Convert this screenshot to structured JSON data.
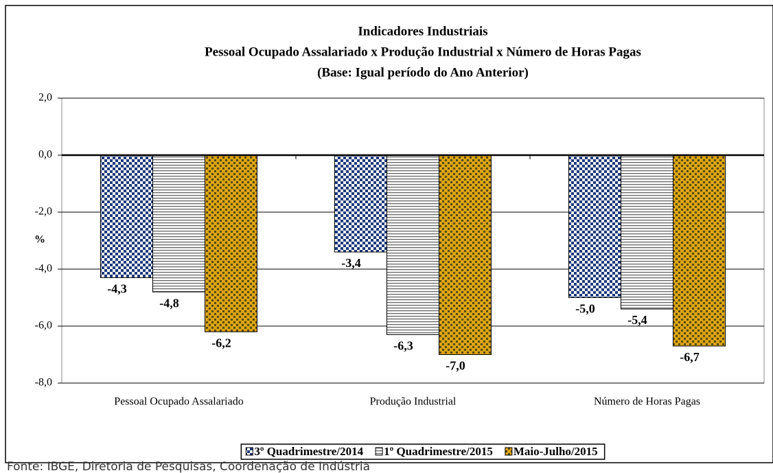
{
  "chart_data": {
    "type": "bar",
    "title": [
      "Indicadores Industriais",
      "Pessoal Ocupado  Assalariado x Produção Industrial x Número de Horas Pagas",
      "(Base: Igual período do Ano Anterior)"
    ],
    "y_label": "%",
    "categories": [
      "Pessoal Ocupado Assalariado",
      "Produção Industrial",
      "Número de Horas Pagas"
    ],
    "series": [
      {
        "name": "3º Quadrimestre/2014",
        "color": "#1f3a7a",
        "pattern": "checker",
        "values": [
          -4.3,
          -3.4,
          -5.0
        ],
        "value_labels": [
          "-4,3",
          "-3,4",
          "-5,0"
        ]
      },
      {
        "name": "1º Quadrimestre/2015",
        "color": "#666666",
        "pattern": "stripes",
        "values": [
          -4.8,
          -6.3,
          -5.4
        ],
        "value_labels": [
          "-4,8",
          "-6,3",
          "-5,4"
        ]
      },
      {
        "name": "Maio-Julho/2015",
        "color": "#d9a514",
        "pattern": "plaid",
        "values": [
          -6.2,
          -7.0,
          -6.7
        ],
        "value_labels": [
          "-6,2",
          "-7,0",
          "-6,7"
        ]
      }
    ],
    "ylim": [
      -8,
      2
    ],
    "yticks": [
      {
        "value": -8,
        "label": "-8,0"
      },
      {
        "value": -6,
        "label": "-6,0"
      },
      {
        "value": -4,
        "label": "-4,0"
      },
      {
        "value": -2,
        "label": "-2,0"
      },
      {
        "value": 0,
        "label": "0,0"
      },
      {
        "value": 2,
        "label": "2,0"
      }
    ],
    "grid": true,
    "legend": "bottom",
    "source": "Fonte: IBGE, Diretoria de Pesquisas, Coordenação de Indústria"
  }
}
